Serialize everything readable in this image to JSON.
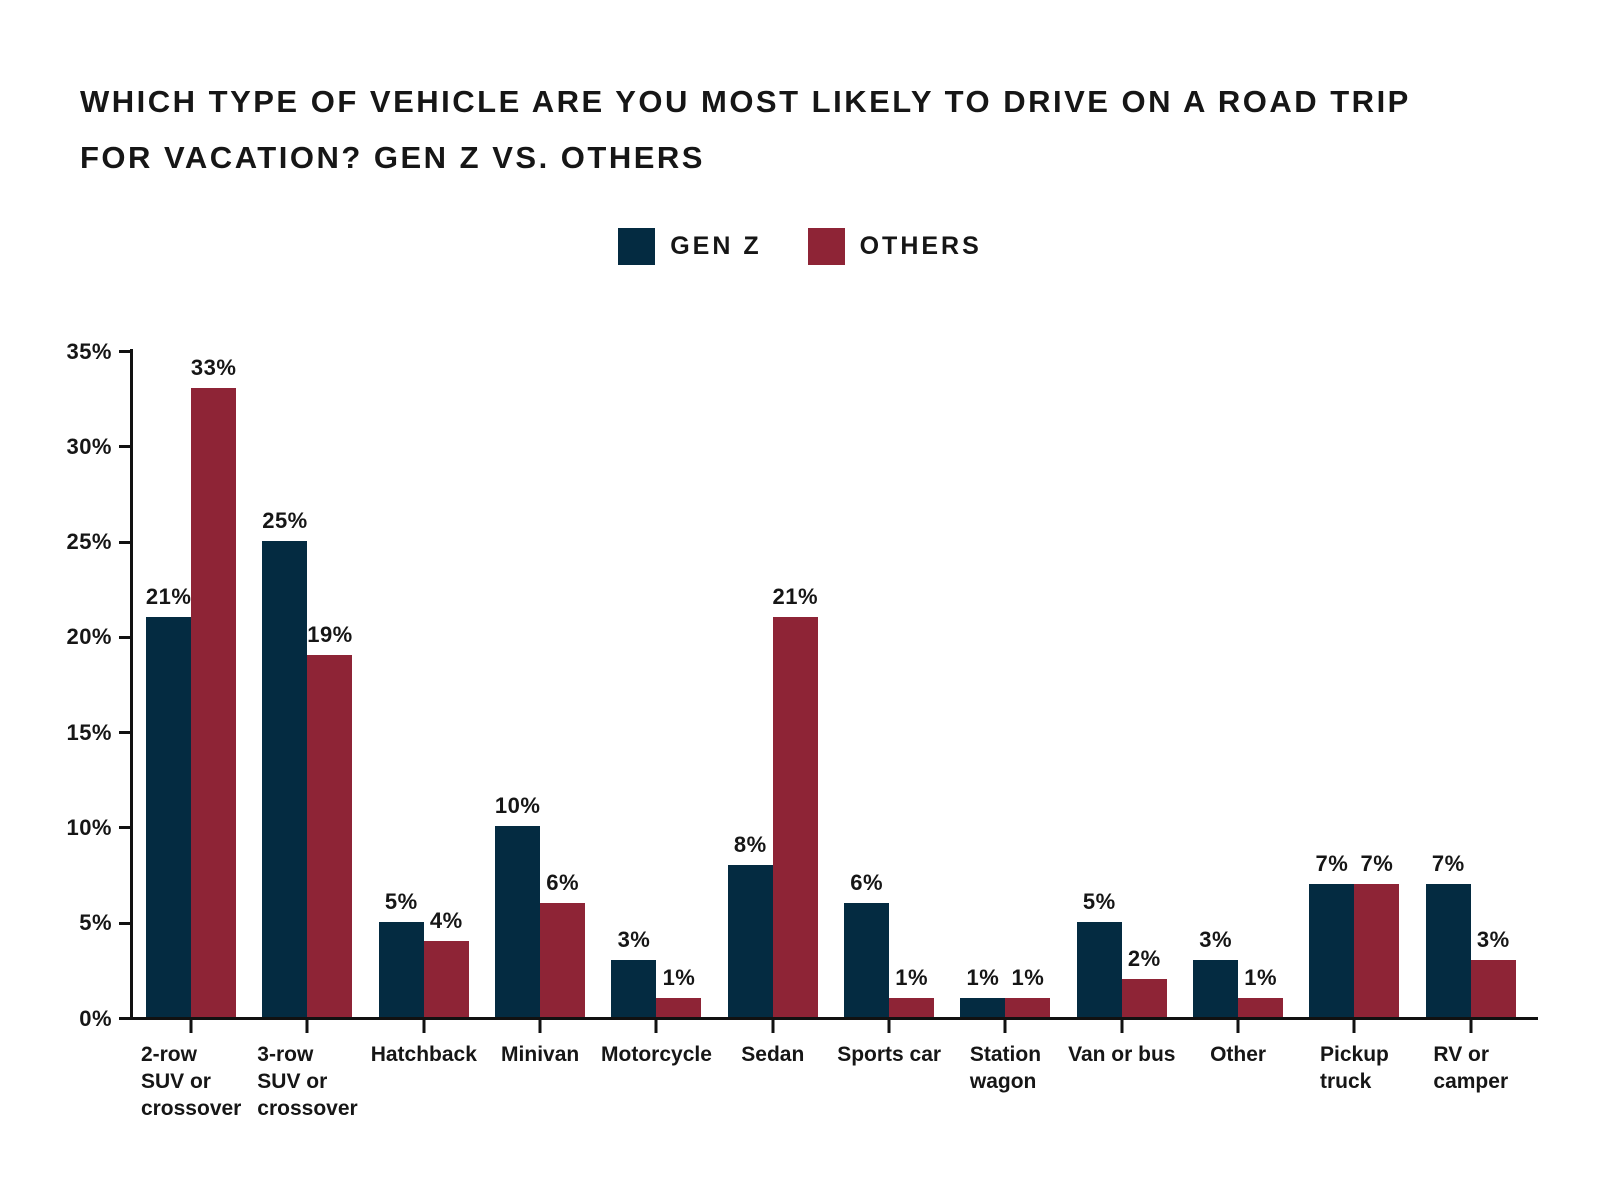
{
  "header": {
    "title_line1": "WHICH TYPE OF VEHICLE ARE YOU MOST LIKELY TO DRIVE ON A ROAD TRIP",
    "title_line2": "FOR VACATION? GEN Z VS. OTHERS"
  },
  "colors": {
    "gen_z": "#042b41",
    "others": "#8e2436",
    "axis": "#111111",
    "text": "#161616",
    "background": "#ffffff"
  },
  "chart_data": {
    "type": "bar",
    "title": "WHICH TYPE OF VEHICLE ARE YOU MOST LIKELY TO DRIVE ON A ROAD TRIP FOR VACATION? GEN Z VS. OTHERS",
    "categories": [
      "2-row SUV or crossover",
      "3-row SUV or crossover",
      "Hatchback",
      "Minivan",
      "Motorcycle",
      "Sedan",
      "Sports car",
      "Station wagon",
      "Van or bus",
      "Other",
      "Pickup truck",
      "RV or camper"
    ],
    "category_label_lines": [
      [
        "2-row",
        "SUV or",
        "crossover"
      ],
      [
        "3-row",
        "SUV or",
        "crossover"
      ],
      [
        "Hatchback"
      ],
      [
        "Minivan"
      ],
      [
        "Motorcycle"
      ],
      [
        "Sedan"
      ],
      [
        "Sports car"
      ],
      [
        "Station",
        "wagon"
      ],
      [
        "Van or bus"
      ],
      [
        "Other"
      ],
      [
        "Pickup",
        "truck"
      ],
      [
        "RV or",
        "camper"
      ]
    ],
    "series": [
      {
        "name": "GEN Z",
        "color": "#042b41",
        "values": [
          21,
          25,
          5,
          10,
          3,
          8,
          6,
          1,
          5,
          3,
          7,
          7
        ]
      },
      {
        "name": "OTHERS",
        "color": "#8e2436",
        "values": [
          33,
          19,
          4,
          6,
          1,
          21,
          1,
          1,
          2,
          1,
          7,
          3
        ]
      }
    ],
    "value_suffix": "%",
    "xlabel": "",
    "ylabel": "",
    "y_axis": {
      "min": 0,
      "max": 35,
      "step": 5,
      "tick_labels": [
        "0%",
        "5%",
        "10%",
        "15%",
        "20%",
        "25%",
        "30%",
        "35%"
      ]
    },
    "grid": false,
    "data_labels": true,
    "legend_position": "top-center"
  }
}
